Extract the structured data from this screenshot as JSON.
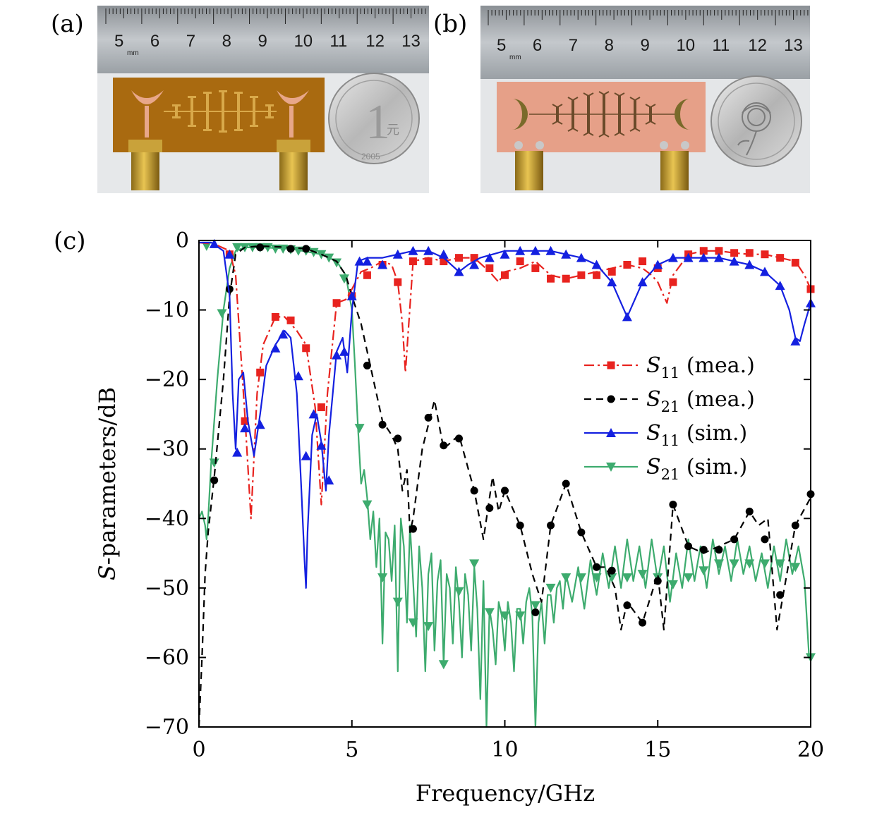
{
  "panels": {
    "a": "(a)",
    "b": "(b)",
    "c": "(c)"
  },
  "photo_a": {
    "ruler_numbers": [
      "5",
      "6",
      "7",
      "8",
      "9",
      "10",
      "11",
      "12",
      "13"
    ],
    "ruler_unit": "mm",
    "coin_value": "1",
    "coin_char": "元",
    "coin_year": "2005"
  },
  "photo_b": {
    "ruler_numbers": [
      "5",
      "6",
      "7",
      "8",
      "9",
      "10",
      "11",
      "12",
      "13"
    ],
    "ruler_unit": "mm"
  },
  "colors": {
    "s11_mea": "#e8231f",
    "s21_mea": "#000000",
    "s11_sim": "#1420e0",
    "s21_sim": "#3dab6e"
  },
  "chart_data": {
    "type": "line",
    "xlabel": "Frequency/GHz",
    "ylabel_italic": "S",
    "ylabel_rest": "-parameters/dB",
    "xlim": [
      0,
      20
    ],
    "ylim": [
      -70,
      0
    ],
    "xticks": [
      "0",
      "5",
      "10",
      "15",
      "20"
    ],
    "yticks": [
      "0",
      "−10",
      "−20",
      "−30",
      "−40",
      "−50",
      "−60",
      "−70"
    ],
    "legend_position": "right",
    "series": [
      {
        "name": "S11 (mea.)",
        "label_main": "S",
        "label_sub": "11",
        "label_tail": " (mea.)",
        "style": "dashdot",
        "marker": "square",
        "color": "#e8231f",
        "x": [
          0,
          0.5,
          1.0,
          1.2,
          1.5,
          1.7,
          1.9,
          2.1,
          2.5,
          2.8,
          3.2,
          3.5,
          3.8,
          4.0,
          4.2,
          4.5,
          4.8,
          5.0,
          5.3,
          5.6,
          6.0,
          6.3,
          6.5,
          6.65,
          6.75,
          7.0,
          7.5,
          8.0,
          8.5,
          9.0,
          9.5,
          9.8,
          10.0,
          10.5,
          11.0,
          11.5,
          12.0,
          12.5,
          13.0,
          13.5,
          14.0,
          14.5,
          14.8,
          15.0,
          15.2,
          15.3,
          15.5,
          16.0,
          16.5,
          17.0,
          17.5,
          18.0,
          18.5,
          19.0,
          19.5,
          19.8,
          20.0
        ],
        "y": [
          -0.3,
          -0.5,
          -1.5,
          -5,
          -25,
          -40,
          -22,
          -15,
          -11,
          -11,
          -13,
          -15,
          -24,
          -38,
          -22,
          -9,
          -8.5,
          -7,
          -4.5,
          -4,
          -3,
          -3.5,
          -6,
          -12,
          -19,
          -3,
          -2.5,
          -3,
          -2.5,
          -2.5,
          -4.5,
          -6,
          -4.5,
          -4,
          -3,
          -5,
          -5.5,
          -5,
          -4.5,
          -4,
          -3.5,
          -4,
          -5,
          -6,
          -8,
          -9,
          -5,
          -2,
          -1.5,
          -1.5,
          -1.8,
          -2,
          -2,
          -2.5,
          -3,
          -5,
          -7
        ],
        "markers_x": [
          1.0,
          1.5,
          2.0,
          2.5,
          3.0,
          3.5,
          4.0,
          4.5,
          5.0,
          5.5,
          6.0,
          6.5,
          7.0,
          7.5,
          8.0,
          8.5,
          9.0,
          9.5,
          10.0,
          10.5,
          11.0,
          11.5,
          12.0,
          12.5,
          13.0,
          13.5,
          14.0,
          14.5,
          15.0,
          15.5,
          16.0,
          16.5,
          17.0,
          17.5,
          18.0,
          18.5,
          19.0,
          19.5,
          20.0
        ],
        "markers_y": [
          -2,
          -26,
          -19,
          -11,
          -11.5,
          -15.5,
          -24,
          -9,
          -8,
          -5,
          -3.5,
          -6,
          -3,
          -3,
          -3,
          -2.5,
          -2.5,
          -4,
          -5,
          -3,
          -4,
          -5.5,
          -5.5,
          -5,
          -5,
          -4.5,
          -3.5,
          -3,
          -4,
          -6,
          -2,
          -1.5,
          -1.5,
          -1.8,
          -1.8,
          -2,
          -2.5,
          -3.2,
          -7
        ]
      },
      {
        "name": "S21 (mea.)",
        "label_main": "S",
        "label_sub": "21",
        "label_tail": " (mea.)",
        "style": "dashed",
        "marker": "circle",
        "color": "#000000",
        "x": [
          0,
          0.1,
          0.2,
          0.3,
          0.5,
          0.8,
          1.0,
          1.2,
          1.5,
          2.0,
          3.0,
          3.5,
          4.0,
          4.5,
          4.8,
          5.0,
          5.3,
          5.6,
          6.0,
          6.3,
          6.5,
          6.65,
          6.8,
          6.9,
          7.0,
          7.3,
          7.7,
          8.0,
          8.5,
          9.0,
          9.3,
          9.6,
          9.8,
          10.0,
          10.5,
          10.9,
          11.2,
          11.5,
          12.0,
          12.5,
          13.0,
          13.3,
          13.6,
          13.8,
          14.0,
          14.5,
          15.0,
          15.2,
          15.5,
          16.0,
          16.5,
          17.0,
          17.5,
          18.0,
          18.3,
          18.6,
          18.9,
          19.1,
          19.5,
          20.0
        ],
        "y": [
          -70,
          -60,
          -48,
          -42,
          -34,
          -20,
          -8,
          -2,
          -1,
          -0.8,
          -1,
          -1.2,
          -2,
          -3,
          -5,
          -8,
          -12,
          -18,
          -26,
          -28,
          -30,
          -36,
          -33,
          -42,
          -40,
          -30,
          -23,
          -30,
          -28,
          -36,
          -43,
          -34,
          -39,
          -36,
          -41,
          -48,
          -52,
          -41,
          -35,
          -42,
          -47,
          -47,
          -50,
          -56,
          -52,
          -55,
          -48,
          -56,
          -38,
          -44,
          -45,
          -44,
          -43,
          -39,
          -41,
          -40,
          -56,
          -51,
          -41,
          -37
        ],
        "markers_x": [
          0.5,
          1.0,
          2.0,
          3.0,
          3.5,
          5.0,
          5.5,
          6.0,
          6.5,
          7.0,
          7.5,
          8.0,
          8.5,
          9.0,
          9.5,
          10.0,
          10.5,
          11.0,
          11.5,
          12.0,
          12.5,
          13.0,
          13.5,
          14.0,
          14.5,
          15.0,
          15.5,
          16.0,
          16.5,
          17.0,
          17.5,
          18.0,
          18.5,
          19.0,
          19.5,
          20.0
        ],
        "markers_y": [
          -34.5,
          -7,
          -1,
          -1.2,
          -1.2,
          -8,
          -18,
          -26.5,
          -28.5,
          -41.5,
          -25.5,
          -29.5,
          -28.5,
          -36,
          -38.5,
          -36,
          -41,
          -53.5,
          -41,
          -35,
          -42,
          -47,
          -47.5,
          -52.5,
          -55,
          -49,
          -38,
          -44,
          -44.5,
          -44.5,
          -43,
          -39,
          -43,
          -51,
          -41,
          -36.5
        ]
      },
      {
        "name": "S11 (sim.)",
        "label_main": "S",
        "label_sub": "11",
        "label_tail": " (sim.)",
        "style": "solid",
        "marker": "triangle-up",
        "color": "#1420e0",
        "x": [
          0,
          0.4,
          0.8,
          1.0,
          1.1,
          1.2,
          1.3,
          1.45,
          1.6,
          1.8,
          2.0,
          2.2,
          2.5,
          2.8,
          3.0,
          3.2,
          3.35,
          3.45,
          3.5,
          3.55,
          3.7,
          3.85,
          4.0,
          4.15,
          4.25,
          4.5,
          4.7,
          4.85,
          5.0,
          5.2,
          5.5,
          6.0,
          6.5,
          7.0,
          7.5,
          8.0,
          8.5,
          8.8,
          9.2,
          9.6,
          10.0,
          10.5,
          11.0,
          11.5,
          12.0,
          12.5,
          13.0,
          13.5,
          13.8,
          14.0,
          14.2,
          14.5,
          15.0,
          15.5,
          16.0,
          16.5,
          17.0,
          17.5,
          18.0,
          18.5,
          19.0,
          19.3,
          19.5,
          19.65,
          19.8,
          20.0
        ],
        "y": [
          -0.3,
          -0.3,
          -1.5,
          -8,
          -22,
          -30,
          -20,
          -19,
          -26,
          -31,
          -25,
          -18,
          -15,
          -13,
          -14,
          -22,
          -36,
          -46,
          -50,
          -42,
          -28,
          -25,
          -29,
          -36,
          -28,
          -16,
          -14,
          -19,
          -10,
          -3,
          -2.5,
          -2.5,
          -2,
          -1.5,
          -1.5,
          -2.5,
          -4.5,
          -3.5,
          -2.5,
          -2,
          -1.5,
          -1.5,
          -1.5,
          -1.5,
          -2,
          -2.5,
          -3.5,
          -6,
          -9,
          -11,
          -9,
          -6,
          -3.5,
          -2.5,
          -2.5,
          -2.5,
          -2.5,
          -3,
          -3.5,
          -4.5,
          -6.5,
          -10,
          -14,
          -14.5,
          -12,
          -9
        ],
        "markers_x": [
          0.5,
          1.0,
          1.25,
          1.5,
          2.0,
          2.5,
          2.75,
          3.25,
          3.5,
          3.75,
          4.0,
          4.25,
          4.5,
          4.75,
          5.0,
          5.25,
          5.5,
          6.0,
          6.5,
          7.0,
          7.5,
          8.0,
          8.5,
          9.0,
          9.5,
          10.0,
          10.5,
          11.0,
          11.5,
          12.0,
          12.5,
          13.0,
          13.5,
          14.0,
          14.5,
          15.0,
          15.5,
          16.0,
          16.5,
          17.0,
          17.5,
          18.0,
          18.5,
          19.0,
          19.5,
          20.0
        ],
        "markers_y": [
          -0.5,
          -2,
          -30.5,
          -27,
          -26.5,
          -15.5,
          -13.5,
          -19.5,
          -31,
          -25,
          -29.5,
          -34.5,
          -16.5,
          -16,
          -8,
          -3,
          -3,
          -3.5,
          -2,
          -1.5,
          -1.5,
          -2,
          -4.5,
          -3.5,
          -2.5,
          -2,
          -1.5,
          -1.5,
          -1.5,
          -2,
          -2.5,
          -3.5,
          -6,
          -11,
          -6,
          -3.5,
          -2.5,
          -2.5,
          -2.5,
          -2.5,
          -3,
          -3.5,
          -4.5,
          -6.5,
          -14.5,
          -9
        ]
      },
      {
        "name": "S21 (sim.)",
        "label_main": "S",
        "label_sub": "21",
        "label_tail": " (sim.)",
        "style": "solid",
        "marker": "triangle-down",
        "color": "#3dab6e",
        "x": [
          0,
          0.1,
          0.2,
          0.25,
          0.3,
          0.4,
          0.6,
          0.8,
          1.0,
          1.2,
          1.5,
          2.0,
          3.0,
          4.0,
          4.5,
          4.8,
          5.0,
          5.1,
          5.2,
          5.3,
          5.4,
          5.5,
          5.6,
          5.7,
          5.8,
          5.9,
          6.0,
          6.1,
          6.2,
          6.3,
          6.4,
          6.5,
          6.6,
          6.7,
          6.8,
          6.9,
          7.0,
          7.1,
          7.2,
          7.3,
          7.4,
          7.5,
          7.6,
          7.7,
          7.8,
          7.9,
          8.0,
          8.1,
          8.2,
          8.3,
          8.4,
          8.5,
          8.6,
          8.7,
          8.8,
          8.9,
          9.0,
          9.1,
          9.2,
          9.3,
          9.4,
          9.5,
          9.6,
          9.7,
          9.8,
          9.9,
          10.0,
          10.1,
          10.2,
          10.3,
          10.4,
          10.5,
          10.6,
          10.7,
          10.8,
          10.9,
          11.0,
          11.1,
          11.2,
          11.3,
          11.4,
          11.5,
          11.6,
          11.7,
          11.8,
          11.9,
          12.0,
          12.2,
          12.4,
          12.6,
          12.8,
          13.0,
          13.2,
          13.4,
          13.6,
          13.8,
          14.0,
          14.2,
          14.4,
          14.6,
          14.8,
          15.0,
          15.2,
          15.4,
          15.6,
          15.8,
          16.0,
          16.2,
          16.4,
          16.6,
          16.8,
          17.0,
          17.2,
          17.4,
          17.6,
          17.8,
          18.0,
          18.2,
          18.4,
          18.6,
          18.8,
          19.0,
          19.2,
          19.4,
          19.6,
          19.8,
          19.95,
          20.0
        ],
        "y": [
          -40,
          -39,
          -41,
          -43,
          -40,
          -32,
          -20,
          -10,
          -4,
          -1.5,
          -1,
          -1,
          -1.2,
          -2,
          -3,
          -5,
          -10,
          -18,
          -27,
          -35,
          -33,
          -37,
          -43,
          -39,
          -47,
          -40,
          -58,
          -42,
          -43,
          -49,
          -41,
          -62,
          -40,
          -44,
          -55,
          -41,
          -49,
          -57,
          -44,
          -50,
          -62,
          -48,
          -45,
          -59,
          -49,
          -46,
          -61,
          -48,
          -50,
          -58,
          -47,
          -52,
          -60,
          -48,
          -51,
          -59,
          -47,
          -53,
          -66,
          -49,
          -70,
          -53,
          -56,
          -61,
          -52,
          -54,
          -59,
          -52,
          -55,
          -62,
          -53,
          -53,
          -58,
          -52,
          -50,
          -54,
          -70,
          -55,
          -52,
          -58,
          -51,
          -51,
          -55,
          -50,
          -49,
          -53,
          -48,
          -52,
          -47,
          -53,
          -46,
          -51,
          -45,
          -50,
          -44,
          -50,
          -43,
          -49,
          -44,
          -50,
          -43,
          -49,
          -44,
          -52,
          -45,
          -50,
          -43,
          -49,
          -44,
          -50,
          -43,
          -48,
          -44,
          -49,
          -43,
          -48,
          -44,
          -49,
          -45,
          -50,
          -44,
          -49,
          -43,
          -48,
          -44,
          -49,
          -60,
          -60
        ],
        "markers_x": [
          0.25,
          0.5,
          0.75,
          1.25,
          1.5,
          1.75,
          2.0,
          2.25,
          2.5,
          2.75,
          3.0,
          3.25,
          3.5,
          3.75,
          4.0,
          4.25,
          4.5,
          4.75,
          5.25,
          5.5,
          6.0,
          6.5,
          7.0,
          7.5,
          8.0,
          8.5,
          9.0,
          9.5,
          10.0,
          10.5,
          11.0,
          11.5,
          12.0,
          12.5,
          13.0,
          13.5,
          14.0,
          14.5,
          15.0,
          15.5,
          16.0,
          16.5,
          17.0,
          17.5,
          18.0,
          18.5,
          19.0,
          19.5,
          20.0
        ],
        "markers_y": [
          -0.8,
          -32,
          -10.5,
          -1,
          -1,
          -1,
          -1,
          -1,
          -1.2,
          -1.2,
          -1.3,
          -1.5,
          -1.5,
          -1.7,
          -2,
          -2.5,
          -3.2,
          -5.5,
          -27,
          -38,
          -48.5,
          -52,
          -55,
          -55.5,
          -61,
          -50.5,
          -46.5,
          -53.5,
          -54,
          -54,
          -52.5,
          -50,
          -48.5,
          -48.5,
          -48.5,
          -48.5,
          -48.5,
          -48,
          -48.5,
          -49.5,
          -48.5,
          -47.5,
          -46.5,
          -46.5,
          -46.5,
          -46.5,
          -46.5,
          -47,
          -60
        ]
      }
    ]
  }
}
